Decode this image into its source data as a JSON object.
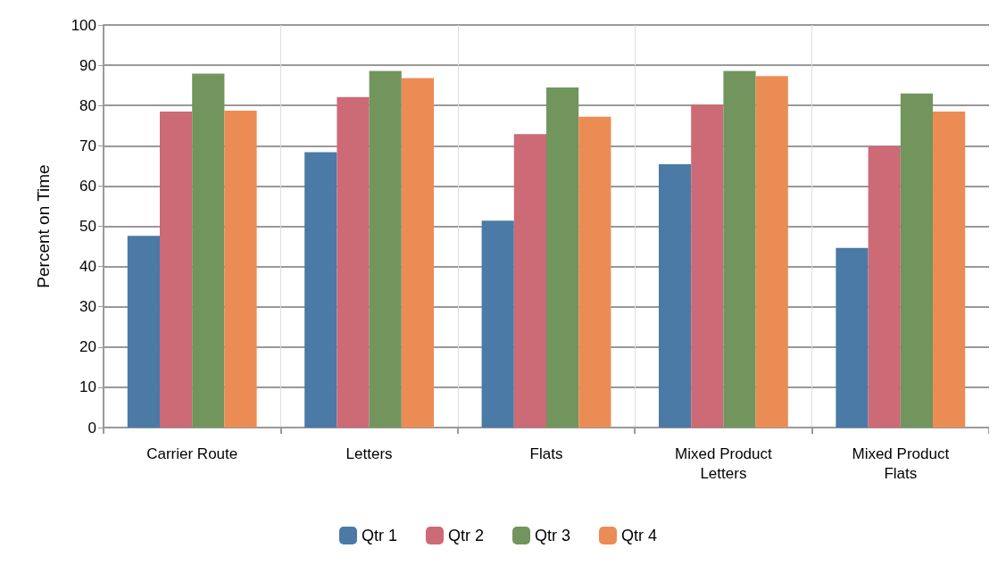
{
  "chart_data": {
    "type": "bar",
    "ylabel": "Percent on Time",
    "categories": [
      "Carrier Route",
      "Letters",
      "Flats",
      "Mixed Product\nLetters",
      "Mixed Product\nFlats"
    ],
    "series": [
      {
        "name": "Qtr 1",
        "color": "#4a7aa5",
        "values": [
          47.6,
          68.4,
          51.4,
          65.4,
          44.6
        ]
      },
      {
        "name": "Qtr 2",
        "color": "#cc6a75",
        "values": [
          78.5,
          82.1,
          72.9,
          80.2,
          69.9
        ]
      },
      {
        "name": "Qtr 3",
        "color": "#72955e",
        "values": [
          87.9,
          88.6,
          84.5,
          88.6,
          83.0
        ]
      },
      {
        "name": "Qtr 4",
        "color": "#ec8c55",
        "values": [
          78.7,
          86.8,
          77.2,
          87.3,
          78.5
        ]
      }
    ],
    "ylim": [
      0,
      100
    ],
    "yticks": [
      0,
      10,
      20,
      30,
      40,
      50,
      60,
      70,
      80,
      90,
      100
    ],
    "grid": true,
    "legend": "bottom"
  }
}
